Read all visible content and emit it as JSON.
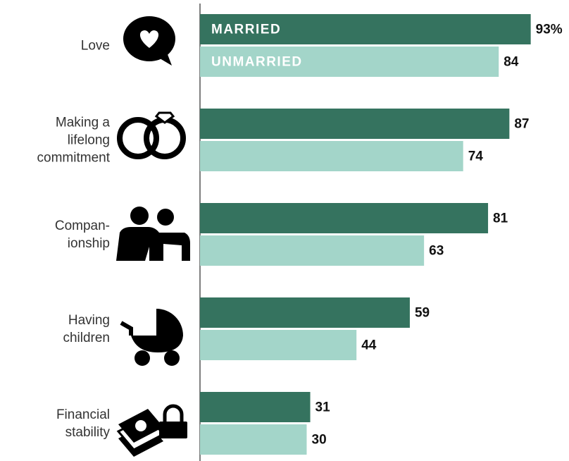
{
  "chart_data": {
    "type": "bar",
    "orientation": "horizontal",
    "categories": [
      "Love",
      "Making a\nlifelong\ncommitment",
      "Compan-\nionship",
      "Having\nchildren",
      "Financial\nstability"
    ],
    "series": [
      {
        "name": "MARRIED",
        "color": "#35735f",
        "values": [
          93,
          87,
          81,
          59,
          31
        ],
        "value_labels": [
          "93%",
          "87",
          "81",
          "59",
          "31"
        ]
      },
      {
        "name": "UNMARRIED",
        "color": "#a3d5c9",
        "values": [
          84,
          74,
          63,
          44,
          30
        ]
      }
    ],
    "xlim": [
      0,
      100
    ]
  }
}
